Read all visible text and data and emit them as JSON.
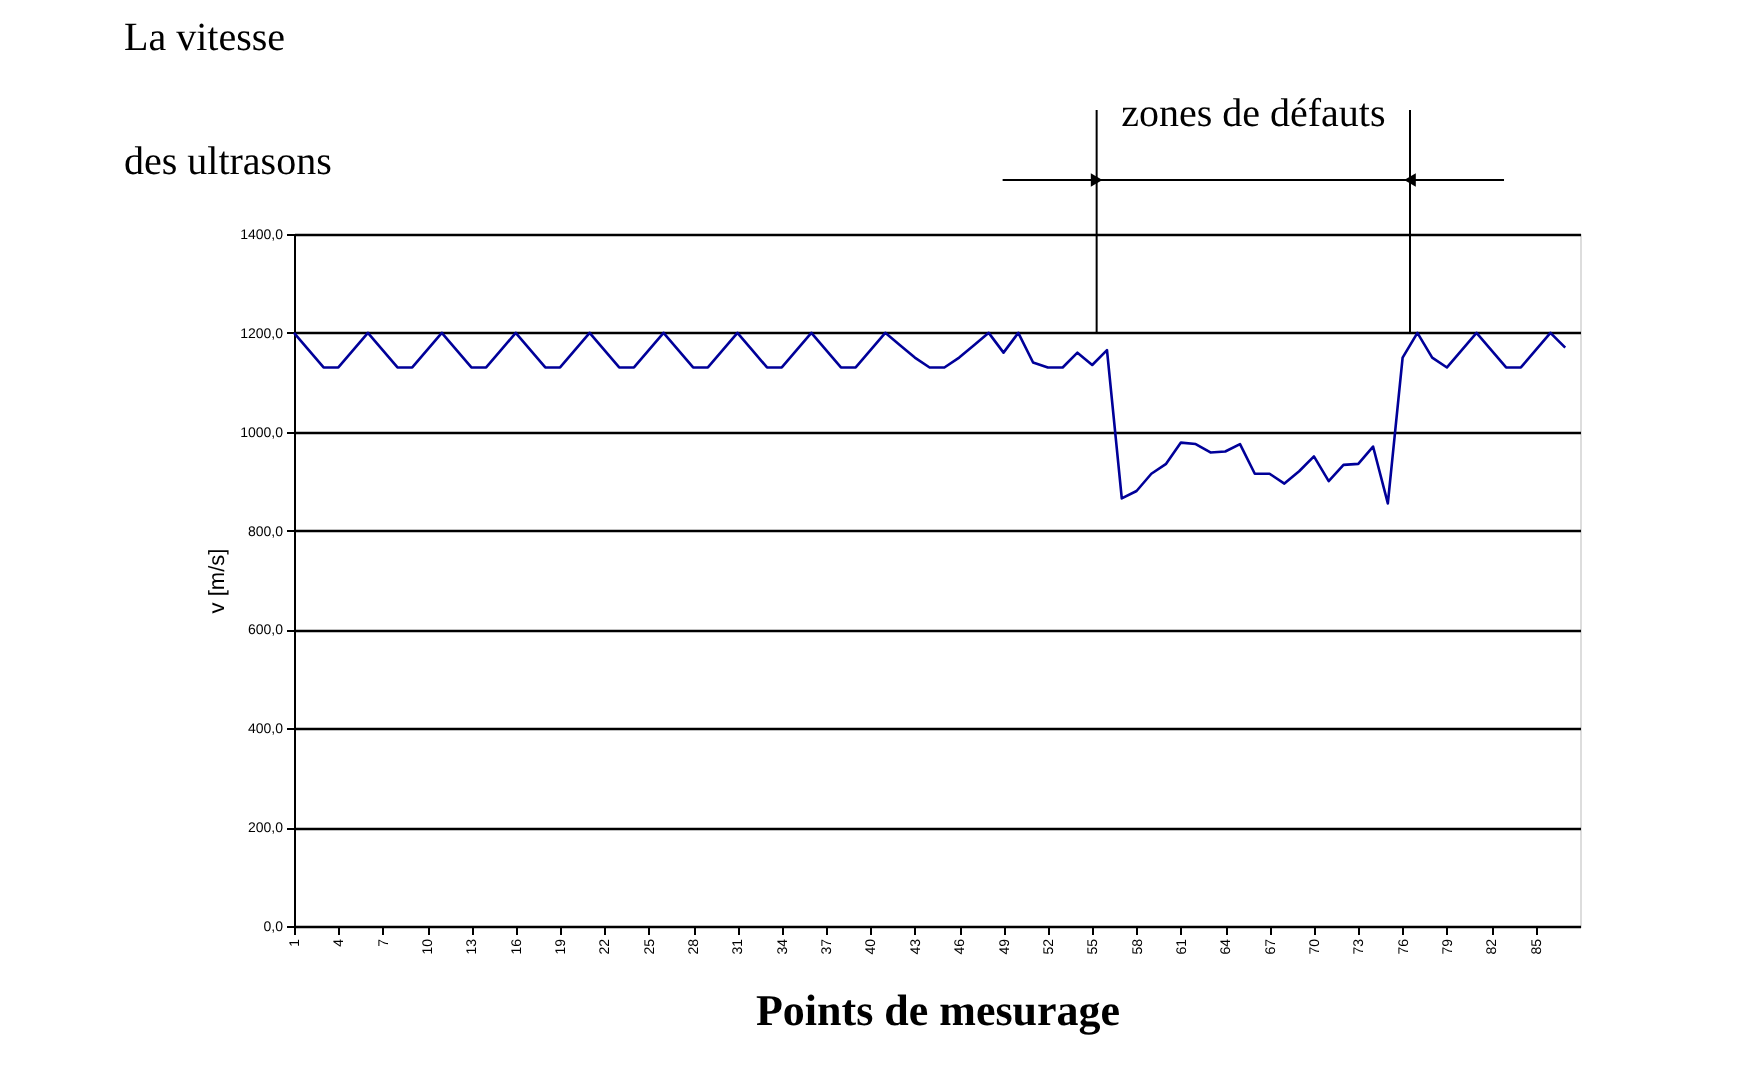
{
  "chart_data": {
    "type": "line",
    "title": [
      "La vitesse",
      "des ultrasons"
    ],
    "xlabel": "Points de mesurage",
    "ylabel": "v [m/s]",
    "x": [
      1,
      2,
      3,
      4,
      5,
      6,
      7,
      8,
      9,
      10,
      11,
      12,
      13,
      14,
      15,
      16,
      17,
      18,
      19,
      20,
      21,
      22,
      23,
      24,
      25,
      26,
      27,
      28,
      29,
      30,
      31,
      32,
      33,
      34,
      35,
      36,
      37,
      38,
      39,
      40,
      41,
      42,
      43,
      44,
      45,
      46,
      47,
      48,
      49,
      50,
      51,
      52,
      53,
      54,
      55,
      56,
      57,
      58,
      59,
      60,
      61,
      62,
      63,
      64,
      65,
      66,
      67,
      68,
      69,
      70,
      71,
      72,
      73,
      74,
      75,
      76,
      77,
      78,
      79,
      80,
      81,
      82,
      83,
      84,
      85,
      86,
      87
    ],
    "series": [
      {
        "color": "#000099",
        "values": [
          1200,
          1165,
          1130,
          1130,
          1165,
          1200,
          1165,
          1130,
          1130,
          1165,
          1200,
          1165,
          1130,
          1130,
          1165,
          1200,
          1165,
          1130,
          1130,
          1165,
          1200,
          1165,
          1130,
          1130,
          1165,
          1200,
          1165,
          1130,
          1130,
          1165,
          1200,
          1165,
          1130,
          1130,
          1165,
          1200,
          1165,
          1130,
          1130,
          1165,
          1200,
          1175,
          1150,
          1130,
          1130,
          1150,
          1175,
          1200,
          1160,
          1200,
          1140,
          1130,
          1130,
          1160,
          1135,
          1165,
          865,
          880,
          915,
          935,
          978,
          975,
          958,
          960,
          975,
          915,
          915,
          895,
          920,
          950,
          900,
          933,
          935,
          970,
          855,
          1150,
          1200,
          1150,
          1130,
          1165,
          1200,
          1165,
          1130,
          1130,
          1165,
          1200,
          1170
        ]
      }
    ],
    "xlim": [
      1,
      88
    ],
    "xticks": [
      1,
      4,
      7,
      10,
      13,
      16,
      19,
      22,
      25,
      28,
      31,
      34,
      37,
      40,
      43,
      46,
      49,
      52,
      55,
      58,
      61,
      64,
      67,
      70,
      73,
      76,
      79,
      82,
      85
    ],
    "ylim": [
      0,
      1400
    ],
    "yticks": [
      {
        "value": 0,
        "label": "0,0"
      },
      {
        "value": 200,
        "label": "200,0"
      },
      {
        "value": 400,
        "label": "400,0"
      },
      {
        "value": 600,
        "label": "600,0"
      },
      {
        "value": 800,
        "label": "800,0"
      },
      {
        "value": 1000,
        "label": "1000,0"
      },
      {
        "value": 1200,
        "label": "1200,0"
      },
      {
        "value": 1400,
        "label": "1400,0"
      }
    ],
    "grid": "y",
    "marker": "none",
    "line_style": "solid",
    "ref_lines": [
      {
        "axis": "x",
        "value": 55.3
      },
      {
        "axis": "x",
        "value": 76.5
      }
    ],
    "annotations": [
      "zones de défauts"
    ]
  }
}
